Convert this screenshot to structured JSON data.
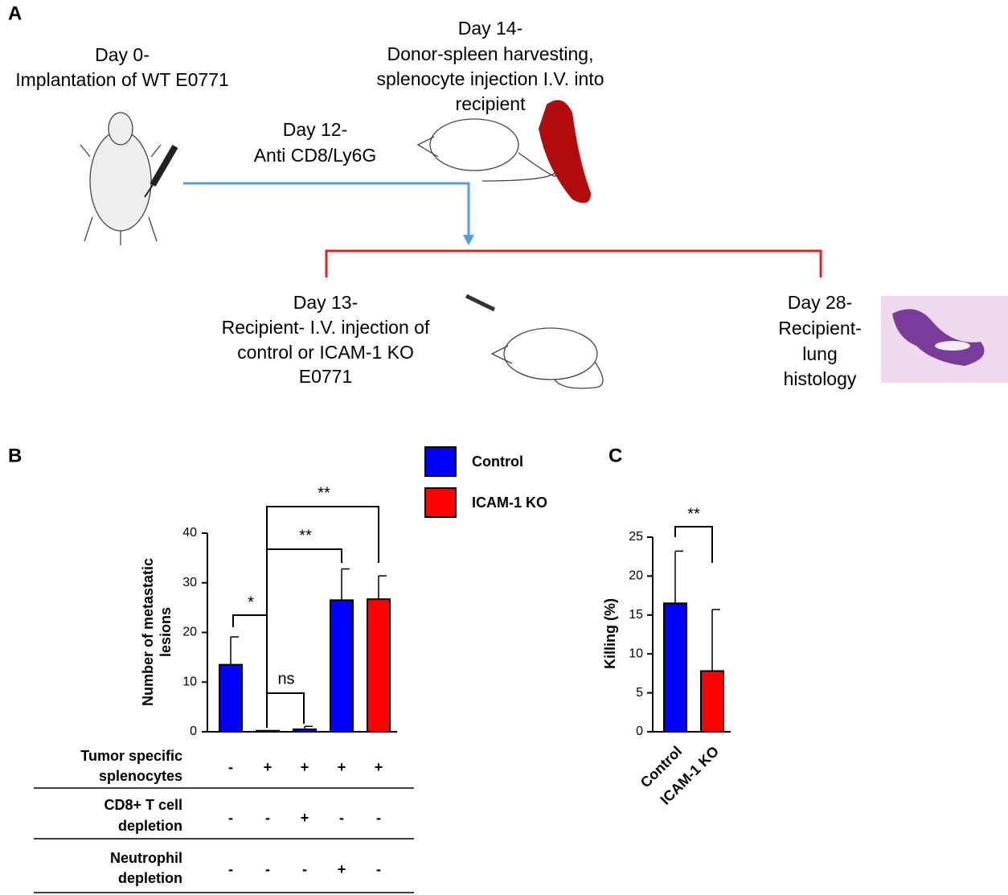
{
  "panel_a": {
    "label": "A",
    "day0": [
      "Day 0-",
      "Implantation of WT E0771"
    ],
    "day14": [
      "Day 14-",
      "Donor-spleen harvesting,",
      "splenocyte injection I.V. into",
      "recipient"
    ],
    "day12": [
      "Day 12-",
      "Anti CD8/Ly6G"
    ],
    "day13": [
      "Day 13-",
      "Recipient- I.V. injection of",
      "control or ICAM-1 KO",
      "E0771"
    ],
    "day28": [
      "Day 28-",
      "Recipient-",
      "lung",
      "histology"
    ]
  },
  "chart_data": [
    {
      "type": "bar",
      "label": "B",
      "ylabel": [
        "Number of metastatic",
        "lesions"
      ],
      "categories": [
        null,
        null,
        null,
        null,
        null
      ],
      "series": [
        {
          "name": "Control",
          "color": "#0000ff",
          "values": [
            13.5,
            0.2,
            0.5,
            26.5,
            null
          ],
          "errors": [
            5.6,
            0,
            0.6,
            6.3,
            null
          ]
        },
        {
          "name": "ICAM-1 KO",
          "color": "#ff0000",
          "values": [
            null,
            null,
            null,
            null,
            26.7
          ],
          "errors": [
            null,
            null,
            null,
            null,
            4.7
          ]
        }
      ],
      "ylim": [
        0,
        40
      ],
      "yticks": [
        0,
        10,
        20,
        30,
        40
      ],
      "annotations": [
        "*",
        "ns",
        "**",
        "**"
      ],
      "conditions": [
        {
          "label": [
            "Tumor specific",
            "splenocytes"
          ],
          "signs": [
            "-",
            "+",
            "+",
            "+",
            "+"
          ]
        },
        {
          "label": [
            "CD8+ T cell",
            "depletion"
          ],
          "signs": [
            "-",
            "-",
            "+",
            "-",
            "-"
          ]
        },
        {
          "label": [
            "Neutrophil",
            "depletion"
          ],
          "signs": [
            "-",
            "-",
            "-",
            "+",
            "-"
          ]
        }
      ]
    },
    {
      "type": "bar",
      "label": "C",
      "ylabel": "Killing (%)",
      "categories": [
        "Control",
        "ICAM-1 KO"
      ],
      "colors": [
        "#0000ff",
        "#ff0000"
      ],
      "values": [
        16.5,
        7.8
      ],
      "errors": [
        6.7,
        7.9
      ],
      "ylim": [
        0,
        25
      ],
      "yticks": [
        0,
        5,
        10,
        15,
        20,
        25
      ],
      "annotations": [
        "**"
      ]
    }
  ]
}
